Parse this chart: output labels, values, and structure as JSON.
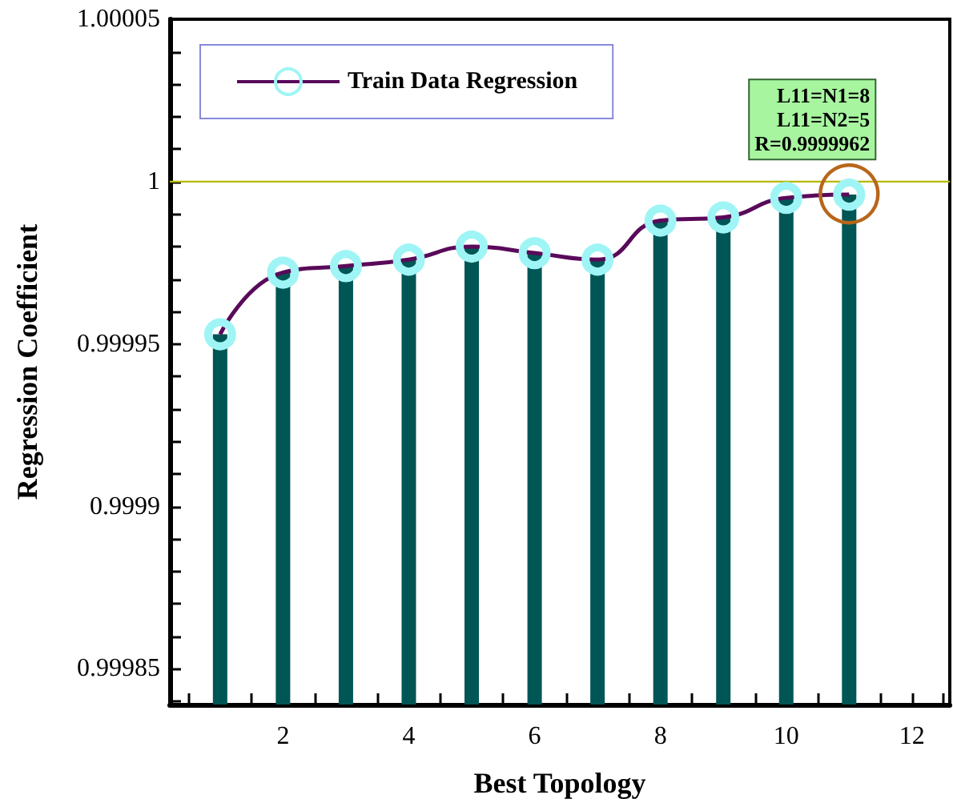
{
  "chart_data": {
    "type": "bar",
    "xlabel": "Best Topology",
    "ylabel": "Regression Coefficient",
    "x": [
      1,
      2,
      3,
      4,
      5,
      6,
      7,
      8,
      9,
      10,
      11
    ],
    "series": [
      {
        "color": "#005555",
        "values": [
          0.999953,
          0.999972,
          0.999974,
          0.999976,
          0.99998,
          0.999978,
          0.999976,
          0.999988,
          0.999989,
          0.999995,
          0.999996
        ]
      },
      {
        "type": "line",
        "name": "Train Data Regression",
        "color": "#5a0a5a",
        "marker": "circle",
        "values": [
          0.999953,
          0.999972,
          0.999974,
          0.999976,
          0.99998,
          0.999978,
          0.999976,
          0.999988,
          0.999989,
          0.999995,
          0.999996
        ]
      }
    ],
    "xlim": [
      0.2,
      12.6
    ],
    "xticks": [
      {
        "value": 0.5,
        "label": null
      },
      {
        "value": 1,
        "label": null
      },
      {
        "value": 1.5,
        "label": null
      },
      2,
      {
        "value": 2.5,
        "label": null
      },
      {
        "value": 3,
        "label": null
      },
      {
        "value": 3.5,
        "label": null
      },
      4,
      {
        "value": 4.5,
        "label": null
      },
      {
        "value": 5,
        "label": null
      },
      {
        "value": 5.5,
        "label": null
      },
      6,
      {
        "value": 6.5,
        "label": null
      },
      {
        "value": 7,
        "label": null
      },
      {
        "value": 7.5,
        "label": null
      },
      8,
      {
        "value": 8.5,
        "label": null
      },
      {
        "value": 9,
        "label": null
      },
      {
        "value": 9.5,
        "label": null
      },
      10,
      {
        "value": 10.5,
        "label": null
      },
      {
        "value": 11,
        "label": null
      },
      {
        "value": 11.5,
        "label": null
      },
      12,
      {
        "value": 12.5,
        "label": null
      }
    ],
    "ylim": [
      0.999839,
      1.00005
    ],
    "yticks": [
      {
        "value": 0.99984,
        "label": null
      },
      0.99985,
      {
        "value": 0.99986,
        "label": null
      },
      {
        "value": 0.99987,
        "label": null
      },
      {
        "value": 0.99988,
        "label": null
      },
      {
        "value": 0.99989,
        "label": null
      },
      0.9999,
      {
        "value": 0.99991,
        "label": null
      },
      {
        "value": 0.99992,
        "label": null
      },
      {
        "value": 0.99993,
        "label": null
      },
      {
        "value": 0.99994,
        "label": null
      },
      0.99995,
      {
        "value": 0.99996,
        "label": null
      },
      {
        "value": 0.99997,
        "label": null
      },
      {
        "value": 0.99998,
        "label": null
      },
      {
        "value": 0.99999,
        "label": null
      },
      1,
      {
        "value": 1.00001,
        "label": null
      },
      {
        "value": 1.00002,
        "label": null
      },
      {
        "value": 1.00003,
        "label": null
      },
      {
        "value": 1.00004,
        "label": null
      },
      1.00005
    ],
    "ref_lines": [
      {
        "axis": "y",
        "value": 1,
        "color": "#b8b800"
      }
    ],
    "annotations": [
      {
        "text": "L11=N1=8\nL11=N2=5\nR=0.9999962",
        "x": 11,
        "y": 0.9999962
      }
    ],
    "legend": "top left",
    "grid": false
  }
}
